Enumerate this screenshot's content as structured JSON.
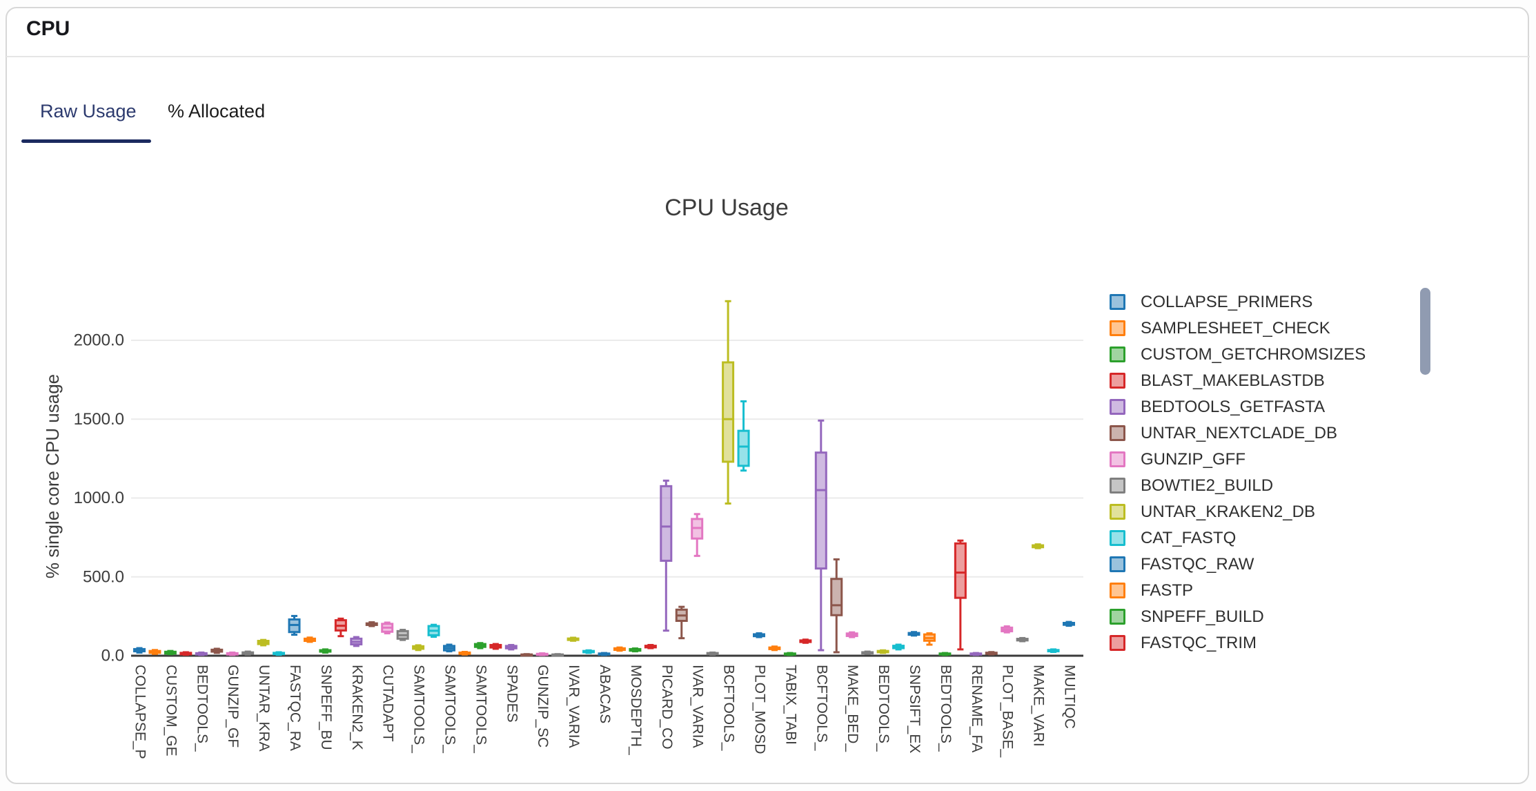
{
  "header": {
    "title": "CPU"
  },
  "tabs": [
    {
      "label": "Raw Usage",
      "active": true
    },
    {
      "label": "% Allocated",
      "active": false
    }
  ],
  "chart_data": {
    "type": "boxplot",
    "title": "CPU Usage",
    "ylabel": "% single core CPU usage",
    "ylim": [
      0,
      2300
    ],
    "yticks": [
      0,
      500,
      1000,
      1500,
      2000
    ],
    "ytick_labels": [
      "0.0",
      "500.0",
      "1000.0",
      "1500.0",
      "2000.0"
    ],
    "grid": true,
    "legend_position": "right",
    "legend_scrollable": true,
    "xtick_every_n_boxes": 2,
    "xtick_labels": [
      "COLLAPSE_P",
      "CUSTOM_GE",
      "BEDTOOLS_",
      "GUNZIP_GF",
      "UNTAR_KRA",
      "FASTQC_RA",
      "SNPEFF_BU",
      "KRAKEN2_K",
      "CUTADAPT",
      "SAMTOOLS_",
      "SAMTOOLS_",
      "SAMTOOLS_",
      "SPADES",
      "GUNZIP_SC",
      "IVAR_VARIA",
      "ABACAS",
      "MOSDEPTH_",
      "PICARD_CO",
      "IVAR_VARIA",
      "BCFTOOLS_",
      "PLOT_MOSD",
      "TABIX_TABI",
      "BCFTOOLS_",
      "MAKE_BED_",
      "BEDTOOLS_",
      "SNPSIFT_EX",
      "BEDTOOLS_",
      "RENAME_FA",
      "PLOT_BASE_",
      "MAKE_VARI",
      "MULTIQC"
    ],
    "palette": [
      "#1f77b4",
      "#ff7f0e",
      "#2ca02c",
      "#d62728",
      "#9467bd",
      "#8c564b",
      "#e377c2",
      "#7f7f7f",
      "#bcbd22",
      "#17becf"
    ],
    "box_color_rule": "palette[index % 10]",
    "boxes": [
      [
        20,
        28,
        34,
        42,
        48
      ],
      [
        12,
        18,
        24,
        30,
        36
      ],
      [
        10,
        14,
        19,
        25,
        30
      ],
      [
        6,
        9,
        13,
        18,
        22
      ],
      [
        5,
        8,
        12,
        16,
        20
      ],
      [
        18,
        26,
        32,
        38,
        44
      ],
      [
        5,
        8,
        12,
        16,
        20
      ],
      [
        8,
        12,
        16,
        21,
        26
      ],
      [
        66,
        74,
        85,
        94,
        100
      ],
      [
        6,
        10,
        14,
        18,
        22
      ],
      [
        133,
        150,
        195,
        230,
        252
      ],
      [
        88,
        94,
        100,
        108,
        115
      ],
      [
        20,
        26,
        30,
        35,
        40
      ],
      [
        124,
        160,
        190,
        225,
        235
      ],
      [
        62,
        72,
        88,
        108,
        118
      ],
      [
        188,
        195,
        200,
        205,
        212
      ],
      [
        142,
        152,
        178,
        202,
        210
      ],
      [
        100,
        108,
        130,
        156,
        164
      ],
      [
        36,
        44,
        52,
        60,
        66
      ],
      [
        120,
        130,
        158,
        188,
        196
      ],
      [
        28,
        34,
        48,
        62,
        70
      ],
      [
        8,
        12,
        16,
        20,
        24
      ],
      [
        48,
        56,
        65,
        74,
        80
      ],
      [
        44,
        52,
        60,
        68,
        74
      ],
      [
        40,
        47,
        54,
        62,
        68
      ],
      [
        2,
        4,
        6,
        8,
        10
      ],
      [
        4,
        6,
        9,
        12,
        15
      ],
      [
        2,
        4,
        6,
        8,
        10
      ],
      [
        95,
        100,
        104,
        109,
        114
      ],
      [
        18,
        22,
        26,
        30,
        34
      ],
      [
        5,
        8,
        11,
        14,
        17
      ],
      [
        32,
        37,
        42,
        47,
        52
      ],
      [
        28,
        32,
        37,
        42,
        46
      ],
      [
        48,
        53,
        58,
        63,
        68
      ],
      [
        159,
        602,
        819,
        1075,
        1110
      ],
      [
        111,
        221,
        255,
        292,
        310
      ],
      [
        633,
        743,
        810,
        867,
        898
      ],
      [
        7,
        10,
        13,
        17,
        20
      ],
      [
        965,
        1230,
        1500,
        1860,
        2248
      ],
      [
        1174,
        1204,
        1326,
        1426,
        1613
      ],
      [
        118,
        124,
        130,
        136,
        142
      ],
      [
        36,
        42,
        47,
        52,
        58
      ],
      [
        5,
        8,
        11,
        14,
        17
      ],
      [
        82,
        87,
        92,
        97,
        102
      ],
      [
        35,
        553,
        1050,
        1288,
        1491
      ],
      [
        22,
        257,
        320,
        487,
        611
      ],
      [
        118,
        125,
        133,
        141,
        148
      ],
      [
        12,
        15,
        18,
        22,
        26
      ],
      [
        18,
        22,
        26,
        30,
        34
      ],
      [
        40,
        48,
        55,
        63,
        70
      ],
      [
        128,
        133,
        138,
        144,
        150
      ],
      [
        70,
        95,
        112,
        135,
        142
      ],
      [
        5,
        8,
        11,
        14,
        17
      ],
      [
        40,
        367,
        527,
        712,
        730
      ],
      [
        5,
        8,
        11,
        14,
        17
      ],
      [
        9,
        12,
        15,
        19,
        23
      ],
      [
        148,
        155,
        165,
        178,
        186
      ],
      [
        92,
        97,
        102,
        107,
        112
      ],
      [
        682,
        688,
        694,
        700,
        706
      ],
      [
        24,
        28,
        32,
        36,
        40
      ],
      [
        190,
        196,
        202,
        208,
        214
      ]
    ]
  },
  "legend": {
    "items": [
      {
        "label": "COLLAPSE_PRIMERS",
        "color": "#1f77b4"
      },
      {
        "label": "SAMPLESHEET_CHECK",
        "color": "#ff7f0e"
      },
      {
        "label": "CUSTOM_GETCHROMSIZES",
        "color": "#2ca02c"
      },
      {
        "label": "BLAST_MAKEBLASTDB",
        "color": "#d62728"
      },
      {
        "label": "BEDTOOLS_GETFASTA",
        "color": "#9467bd"
      },
      {
        "label": "UNTAR_NEXTCLADE_DB",
        "color": "#8c564b"
      },
      {
        "label": "GUNZIP_GFF",
        "color": "#e377c2"
      },
      {
        "label": "BOWTIE2_BUILD",
        "color": "#7f7f7f"
      },
      {
        "label": "UNTAR_KRAKEN2_DB",
        "color": "#bcbd22"
      },
      {
        "label": "CAT_FASTQ",
        "color": "#17becf"
      },
      {
        "label": "FASTQC_RAW",
        "color": "#1f77b4"
      },
      {
        "label": "FASTP",
        "color": "#ff7f0e"
      },
      {
        "label": "SNPEFF_BUILD",
        "color": "#2ca02c"
      },
      {
        "label": "FASTQC_TRIM",
        "color": "#d62728"
      }
    ]
  }
}
